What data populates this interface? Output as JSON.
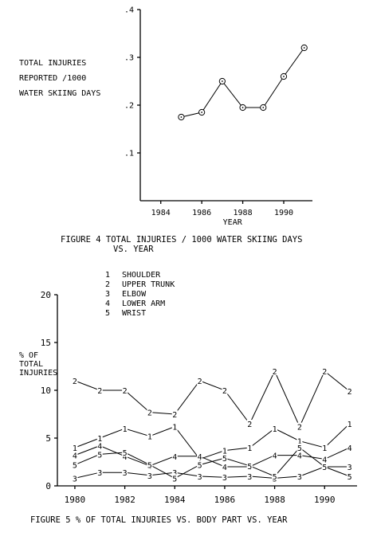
{
  "chart_data": [
    {
      "type": "line",
      "title": "FIGURE 4 TOTAL INJURIES / 1000  WATER SKIING DAYS",
      "title_line2": "VS. YEAR",
      "ylabel": [
        "TOTAL INJURIES",
        "REPORTED /1000",
        "WATER SKIING DAYS"
      ],
      "xlabel": "YEAR",
      "xlim": [
        1983,
        1991.4
      ],
      "ylim": [
        0,
        0.4
      ],
      "x_ticks": [
        "1984",
        "1986",
        "1988",
        "1990"
      ],
      "y_ticks": [
        ".1",
        ".2",
        ".3",
        ".4"
      ],
      "x": [
        1985,
        1986,
        1987,
        1988,
        1989,
        1990,
        1991
      ],
      "values": [
        0.175,
        0.185,
        0.25,
        0.195,
        0.195,
        0.26,
        0.32
      ],
      "marker": "circle-dot",
      "grid": false
    },
    {
      "type": "line",
      "title": "FIGURE 5 % OF TOTAL INJURIES VS. BODY PART VS. YEAR",
      "ylabel": [
        "% OF",
        "TOTAL",
        "INJURIES"
      ],
      "xlim": [
        1979.3,
        1991.3
      ],
      "ylim": [
        0,
        20
      ],
      "x_ticks": [
        "1980",
        "1982",
        "1984",
        "1986",
        "1988",
        "1990"
      ],
      "y_ticks": [
        "0",
        "5",
        "10",
        "15",
        "20"
      ],
      "x": [
        1980,
        1981,
        1982,
        1983,
        1984,
        1985,
        1986,
        1987,
        1988,
        1989,
        1990,
        1991
      ],
      "legend": [
        {
          "marker": "1",
          "name": "SHOULDER"
        },
        {
          "marker": "2",
          "name": "UPPER TRUNK"
        },
        {
          "marker": "3",
          "name": "ELBOW"
        },
        {
          "marker": "4",
          "name": "LOWER ARM"
        },
        {
          "marker": "5",
          "name": "WRIST"
        }
      ],
      "series": [
        {
          "name": "SHOULDER",
          "marker": "1",
          "values": [
            4.0,
            5.0,
            6.0,
            5.2,
            6.2,
            2.8,
            3.7,
            4.0,
            6.0,
            4.7,
            4.0,
            6.5
          ]
        },
        {
          "name": "UPPER TRUNK",
          "marker": "2",
          "values": [
            11.0,
            10.0,
            10.0,
            7.7,
            7.5,
            11.0,
            10.0,
            6.5,
            12.0,
            6.2,
            12.0,
            9.9
          ]
        },
        {
          "name": "ELBOW",
          "marker": "3",
          "values": [
            0.8,
            1.4,
            1.4,
            1.1,
            1.4,
            1.0,
            0.9,
            1.0,
            0.8,
            1.0,
            2.0,
            2.0
          ]
        },
        {
          "name": "LOWER ARM",
          "marker": "4",
          "values": [
            3.2,
            4.2,
            3.1,
            2.1,
            3.1,
            3.1,
            2.0,
            2.0,
            3.2,
            3.2,
            2.8,
            4.0
          ]
        },
        {
          "name": "WRIST",
          "marker": "5",
          "values": [
            2.2,
            3.3,
            3.5,
            2.2,
            0.8,
            2.2,
            2.9,
            2.1,
            1.0,
            4.0,
            2.0,
            1.0
          ]
        }
      ],
      "grid": false
    }
  ]
}
